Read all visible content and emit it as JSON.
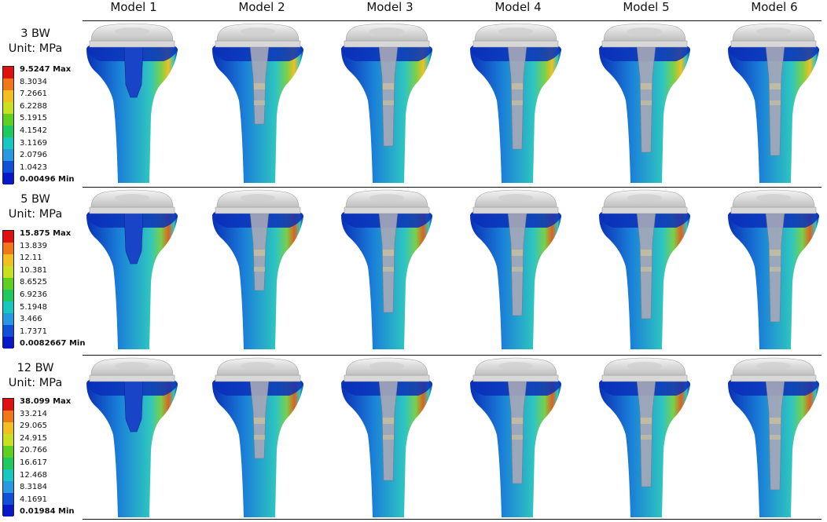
{
  "models": [
    "Model 1",
    "Model 2",
    "Model 3",
    "Model 4",
    "Model 5",
    "Model 6"
  ],
  "rows": [
    {
      "load": "3 BW",
      "unit": "Unit: MPa",
      "legend": [
        "9.5247 Max",
        "8.3034",
        "7.2661",
        "6.2288",
        "5.1915",
        "4.1542",
        "3.1169",
        "2.0796",
        "1.0423",
        "0.00496 Min"
      ]
    },
    {
      "load": "5 BW",
      "unit": "Unit: MPa",
      "legend": [
        "15.875 Max",
        "13.839",
        "12.11",
        "10.381",
        "8.6525",
        "6.9236",
        "5.1948",
        "3.466",
        "1.7371",
        "0.0082667 Min"
      ]
    },
    {
      "load": "12 BW",
      "unit": "Unit: MPa",
      "legend": [
        "38.099 Max",
        "33.214",
        "29.065",
        "24.915",
        "20.766",
        "16.617",
        "12.468",
        "8.3184",
        "4.1691",
        "0.01984 Min"
      ]
    }
  ],
  "colors": {
    "scale": [
      "#e01010",
      "#f07818",
      "#f0c020",
      "#c8e020",
      "#60d020",
      "#20c860",
      "#18c8c0",
      "#2898e0",
      "#1050d8",
      "#0818c8"
    ],
    "bone_dark": "#0a2fb8",
    "bone_mid": "#1a7fd8",
    "bone_light": "#2fc6c0",
    "tray": "#e6e6e6",
    "stem": "#a8a8b8"
  }
}
